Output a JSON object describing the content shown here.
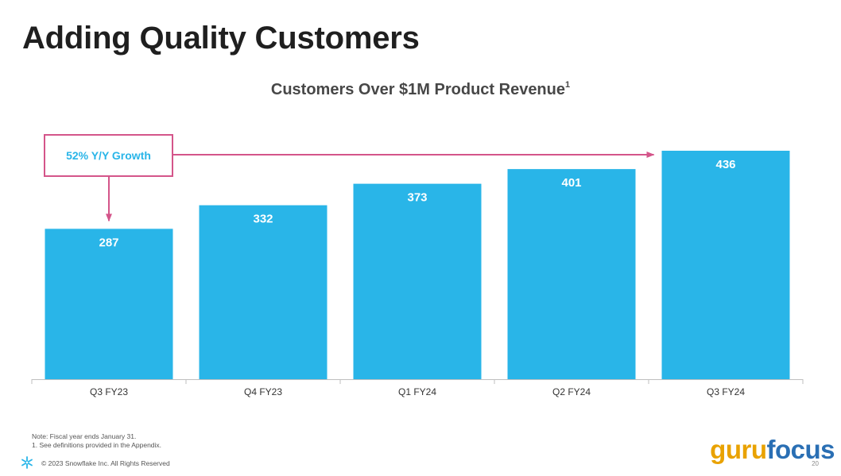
{
  "slide": {
    "title": "Adding Quality Customers"
  },
  "chart_data": {
    "type": "bar",
    "title": "Customers Over $1M Product Revenue",
    "title_footnote_marker": "1",
    "categories": [
      "Q3 FY23",
      "Q4 FY23",
      "Q1 FY24",
      "Q2 FY24",
      "Q3 FY24"
    ],
    "values": [
      287,
      332,
      373,
      401,
      436
    ],
    "xlabel": "",
    "ylabel": "",
    "ylim": [
      0,
      436
    ],
    "grid": false,
    "annotation": "52% Y/Y Growth",
    "colors": {
      "bar": "#29b5e8",
      "annotation": "#d4558a",
      "value_label": "#ffffff",
      "tick_label": "#333333",
      "axis": "#bfbfbf"
    }
  },
  "footer": {
    "note_line1": "Note: Fiscal year ends January 31.",
    "note_line2": "1.  See definitions provided in the Appendix.",
    "copyright": "© 2023 Snowflake Inc. All Rights Reserved",
    "page_number": "20",
    "brand_part1": "guru",
    "brand_part2": "focus",
    "icon": "snowflake-icon"
  }
}
